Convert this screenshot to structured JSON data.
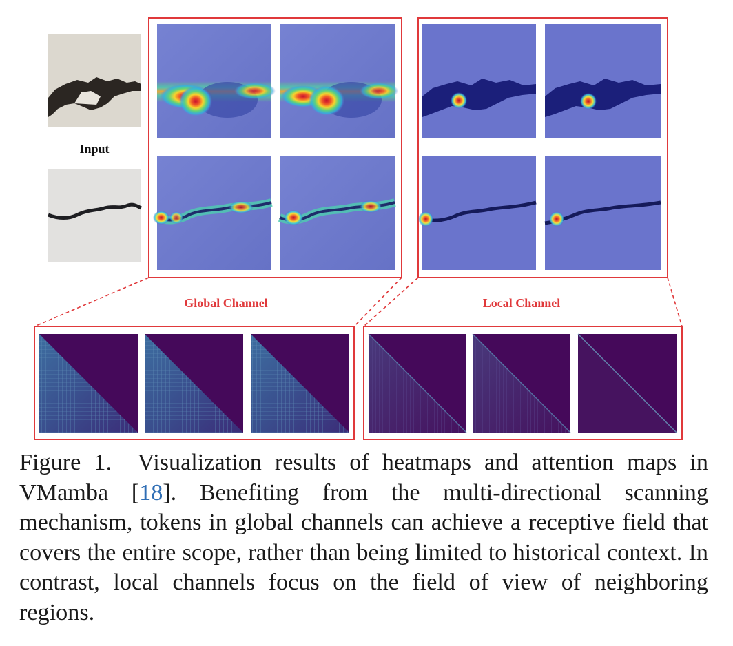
{
  "figure": {
    "input_label": "Input",
    "global_label": "Global Channel",
    "local_label": "Local Channel"
  },
  "caption": {
    "prefix": "Figure 1.",
    "text_before_ref": "Visualization results of heatmaps and attention maps in VMamba [",
    "ref_number": "18",
    "text_after_ref": "]. Benefiting from the multi-directional scanning mechanism, tokens in global channels can achieve a receptive field that covers the entire scope, rather than being limited to historical context. In contrast, local channels focus on the field of view of neighboring regions."
  },
  "colors": {
    "frame_red": "#e0393b",
    "label_red": "#e0393b",
    "heatmap_blue": "#6b77cf",
    "attention_purple": "#45095a",
    "citation_blue": "#2f6eb5"
  }
}
